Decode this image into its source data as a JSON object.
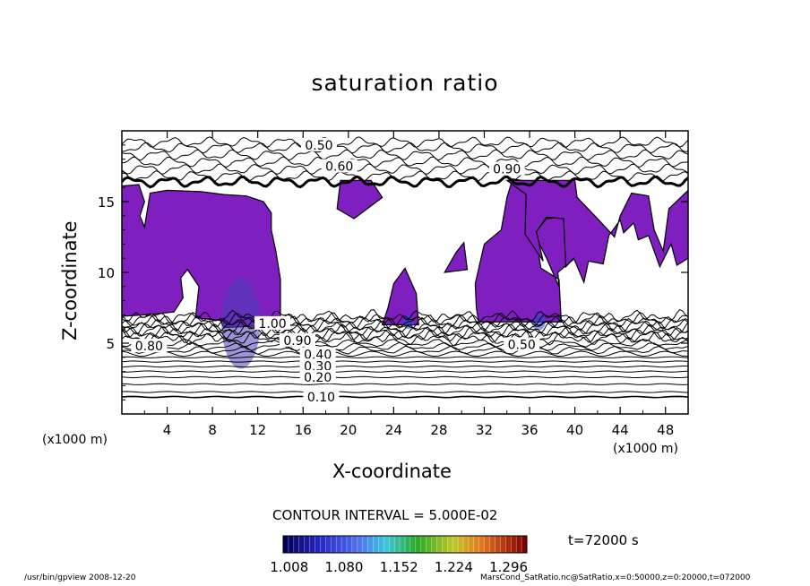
{
  "chart_data": {
    "type": "contour",
    "title": "saturation ratio",
    "xlabel": "X-coordinate",
    "ylabel": "Z-coordinate",
    "x_unit": "(x1000 m)",
    "xlim": [
      0,
      50
    ],
    "ylim": [
      0,
      20
    ],
    "x_ticks": [
      4,
      8,
      12,
      16,
      20,
      24,
      28,
      32,
      36,
      40,
      44,
      48
    ],
    "y_ticks": [
      5,
      10,
      15
    ],
    "contour_interval": "CONTOUR INTERVAL = 5.000E-02",
    "contour_labels": [
      "0.50",
      "0.60",
      "0.90",
      "1.00",
      "0.90",
      "0.80",
      "0.50",
      "0.40",
      "0.30",
      "0.20",
      "0.10"
    ],
    "colorbar": {
      "levels": [
        "1.008",
        "1.080",
        "1.152",
        "1.224",
        "1.296"
      ],
      "min": 1.0,
      "max": 1.32
    },
    "time": "t=72000 s",
    "filled_color": "#7f1fbf"
  },
  "footer": {
    "left": "/usr/bin/gpview   2008-12-20",
    "right": "MarsCond_SatRatio.nc@SatRatio,x=0:50000,z=0:20000,t=072000"
  }
}
